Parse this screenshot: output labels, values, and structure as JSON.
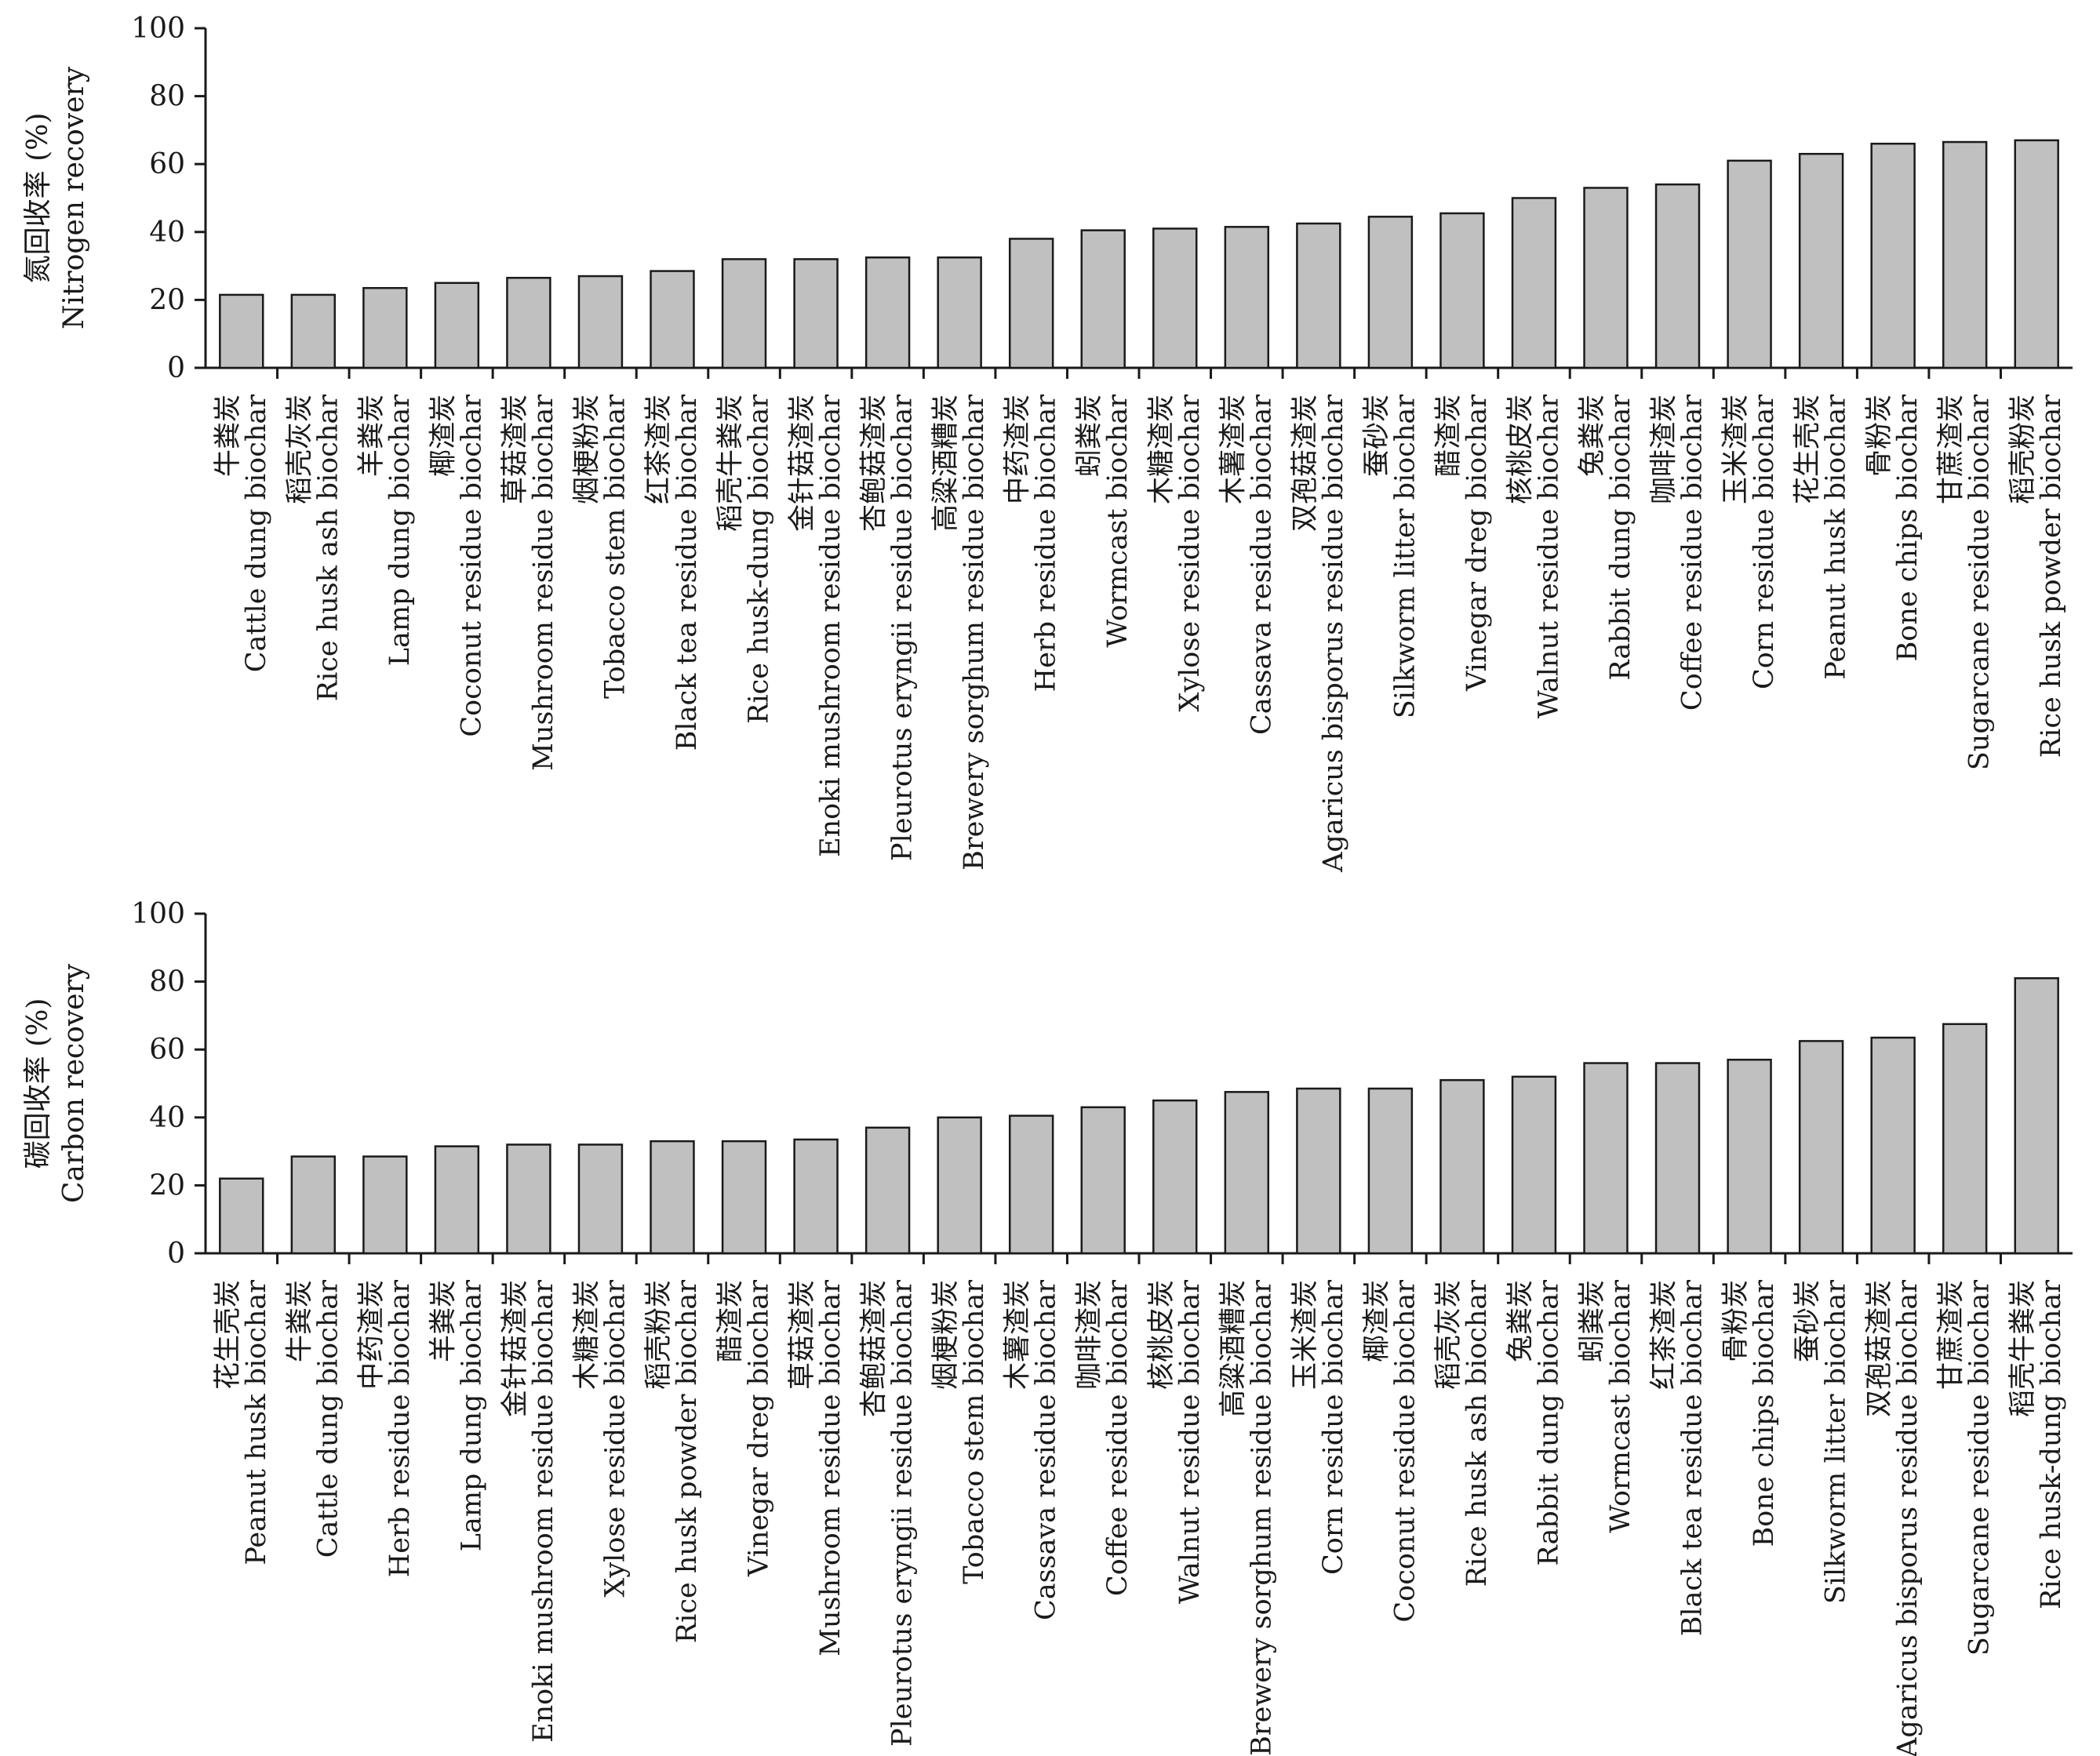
{
  "chart_data": [
    {
      "type": "bar",
      "ylabel": [
        "氮回收率 (%)",
        "Nitrogen recovery"
      ],
      "ylim": [
        0,
        100
      ],
      "yticks": [
        0,
        20,
        40,
        60,
        80,
        100
      ],
      "categories": [
        [
          "牛粪炭",
          "Cattle dung biochar"
        ],
        [
          "稻壳灰炭",
          "Rice husk ash biochar"
        ],
        [
          "羊粪炭",
          "Lamp dung biochar"
        ],
        [
          "椰渣炭",
          "Coconut residue biochar"
        ],
        [
          "草菇渣炭",
          "Mushroom residue biochar"
        ],
        [
          "烟梗粉炭",
          "Tobacco stem biochar"
        ],
        [
          "红茶渣炭",
          "Black tea residue biochar"
        ],
        [
          "稻壳牛粪炭",
          "Rice husk-dung biochar"
        ],
        [
          "金针菇渣炭",
          "Enoki mushroom residue biochar"
        ],
        [
          "杏鲍菇渣炭",
          "Pleurotus eryngii residue biochar"
        ],
        [
          "高粱酒糟炭",
          "Brewery sorghum residue biochar"
        ],
        [
          "中药渣炭",
          "Herb residue biochar"
        ],
        [
          "蚓粪炭",
          "Wormcast biochar"
        ],
        [
          "木糖渣炭",
          "Xylose residue biochar"
        ],
        [
          "木薯渣炭",
          "Cassava residue biochar"
        ],
        [
          "双孢菇渣炭",
          "Agaricus bisporus residue biochar"
        ],
        [
          "蚕砂炭",
          "Silkworm litter biochar"
        ],
        [
          "醋渣炭",
          "Vinegar dreg biochar"
        ],
        [
          "核桃皮炭",
          "Walnut residue biochar"
        ],
        [
          "兔粪炭",
          "Rabbit dung biochar"
        ],
        [
          "咖啡渣炭",
          "Coffee residue biochar"
        ],
        [
          "玉米渣炭",
          "Corn residue biochar"
        ],
        [
          "花生壳炭",
          "Peanut husk biochar"
        ],
        [
          "骨粉炭",
          "Bone chips biochar"
        ],
        [
          "甘蔗渣炭",
          "Sugarcane residue biochar"
        ],
        [
          "稻壳粉炭",
          "Rice husk powder biochar"
        ]
      ],
      "values": [
        21.5,
        21.5,
        23.5,
        25,
        26.5,
        27,
        28.5,
        32,
        32,
        32.5,
        32.5,
        38,
        40.5,
        41,
        41.5,
        42.5,
        44.5,
        45.5,
        50,
        53,
        54,
        61,
        63,
        66,
        66.5,
        67
      ]
    },
    {
      "type": "bar",
      "ylabel": [
        "碳回收率 (%)",
        "Carbon recovery"
      ],
      "ylim": [
        0,
        100
      ],
      "yticks": [
        0,
        20,
        40,
        60,
        80,
        100
      ],
      "categories": [
        [
          "花生壳炭",
          "Peanut husk biochar"
        ],
        [
          "牛粪炭",
          "Cattle dung biochar"
        ],
        [
          "中药渣炭",
          "Herb residue biochar"
        ],
        [
          "羊粪炭",
          "Lamp dung biochar"
        ],
        [
          "金针菇渣炭",
          "Enoki mushroom residue biochar"
        ],
        [
          "木糖渣炭",
          "Xylose residue biochar"
        ],
        [
          "稻壳粉炭",
          "Rice husk powder biochar"
        ],
        [
          "醋渣炭",
          "Vinegar dreg biochar"
        ],
        [
          "草菇渣炭",
          "Mushroom residue biochar"
        ],
        [
          "杏鲍菇渣炭",
          "Pleurotus eryngii residue biochar"
        ],
        [
          "烟梗粉炭",
          "Tobacco stem biochar"
        ],
        [
          "木薯渣炭",
          "Cassava residue biochar"
        ],
        [
          "咖啡渣炭",
          "Coffee residue biochar"
        ],
        [
          "核桃皮炭",
          "Walnut residue biochar"
        ],
        [
          "高粱酒糟炭",
          "Brewery sorghum residue biochar"
        ],
        [
          "玉米渣炭",
          "Corn residue biochar"
        ],
        [
          "椰渣炭",
          "Coconut residue biochar"
        ],
        [
          "稻壳灰炭",
          "Rice husk ash biochar"
        ],
        [
          "兔粪炭",
          "Rabbit dung biochar"
        ],
        [
          "蚓粪炭",
          "Wormcast biochar"
        ],
        [
          "红茶渣炭",
          "Black tea residue biochar"
        ],
        [
          "骨粉炭",
          "Bone chips biochar"
        ],
        [
          "蚕砂炭",
          "Silkworm litter biochar"
        ],
        [
          "双孢菇渣炭",
          "Agaricus bisporus residue biochar"
        ],
        [
          "甘蔗渣炭",
          "Sugarcane residue biochar"
        ],
        [
          "稻壳牛粪炭",
          "Rice husk-dung biochar"
        ]
      ],
      "values": [
        22,
        28.5,
        28.5,
        31.5,
        32,
        32,
        33,
        33,
        33.5,
        37,
        40,
        40.5,
        43,
        45,
        47.5,
        48.5,
        48.5,
        51,
        52,
        56,
        56,
        57,
        62.5,
        63.5,
        67.5,
        81
      ]
    }
  ]
}
